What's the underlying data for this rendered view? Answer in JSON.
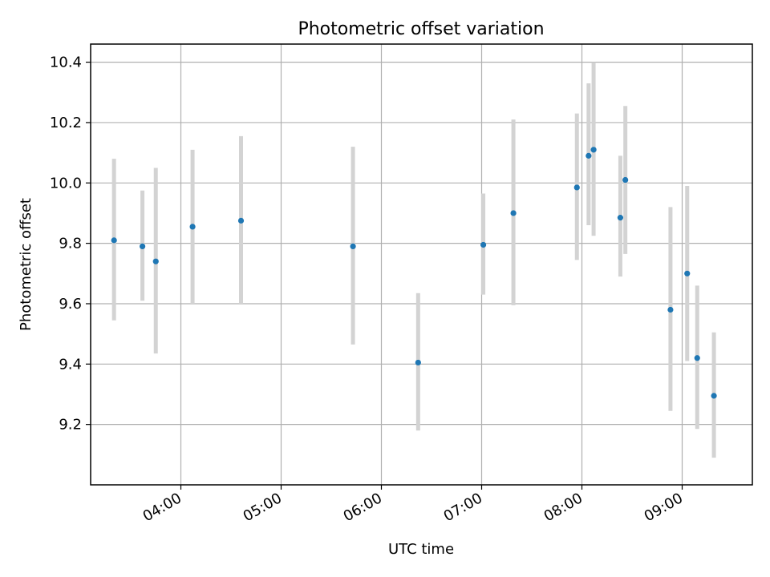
{
  "chart_data": {
    "type": "scatter",
    "title": "Photometric offset variation",
    "xlabel": "UTC time",
    "ylabel": "Photometric offset",
    "x_axis": {
      "kind": "time",
      "ticks": [
        "04:00",
        "05:00",
        "06:00",
        "07:00",
        "08:00",
        "09:00"
      ],
      "range": [
        "03:06",
        "09:42"
      ]
    },
    "ylim": [
      9.0,
      10.46
    ],
    "y_ticks": [
      "9.2",
      "9.4",
      "9.6",
      "9.8",
      "10.0",
      "10.2",
      "10.4"
    ],
    "grid": true,
    "marker_color": "#1f77b4",
    "errorbar_color": "#d3d3d3",
    "series": [
      {
        "points": [
          {
            "x": "03:20",
            "y": 9.81,
            "ylow": 9.545,
            "yhigh": 10.08
          },
          {
            "x": "03:37",
            "y": 9.79,
            "ylow": 9.61,
            "yhigh": 9.975
          },
          {
            "x": "03:45",
            "y": 9.74,
            "ylow": 9.435,
            "yhigh": 10.05
          },
          {
            "x": "04:07",
            "y": 9.855,
            "ylow": 9.6,
            "yhigh": 10.11
          },
          {
            "x": "04:36",
            "y": 9.875,
            "ylow": 9.6,
            "yhigh": 10.155
          },
          {
            "x": "05:43",
            "y": 9.79,
            "ylow": 9.465,
            "yhigh": 10.12
          },
          {
            "x": "06:22",
            "y": 9.405,
            "ylow": 9.18,
            "yhigh": 9.635
          },
          {
            "x": "07:01",
            "y": 9.795,
            "ylow": 9.63,
            "yhigh": 9.965
          },
          {
            "x": "07:19",
            "y": 9.9,
            "ylow": 9.595,
            "yhigh": 10.21
          },
          {
            "x": "07:57",
            "y": 9.985,
            "ylow": 9.745,
            "yhigh": 10.23
          },
          {
            "x": "08:04",
            "y": 10.09,
            "ylow": 9.86,
            "yhigh": 10.33
          },
          {
            "x": "08:07",
            "y": 10.11,
            "ylow": 9.825,
            "yhigh": 10.4
          },
          {
            "x": "08:23",
            "y": 9.885,
            "ylow": 9.69,
            "yhigh": 10.09
          },
          {
            "x": "08:26",
            "y": 10.01,
            "ylow": 9.765,
            "yhigh": 10.255
          },
          {
            "x": "08:53",
            "y": 9.58,
            "ylow": 9.245,
            "yhigh": 9.92
          },
          {
            "x": "09:03",
            "y": 9.7,
            "ylow": 9.41,
            "yhigh": 9.99
          },
          {
            "x": "09:09",
            "y": 9.42,
            "ylow": 9.185,
            "yhigh": 9.66
          },
          {
            "x": "09:19",
            "y": 9.295,
            "ylow": 9.09,
            "yhigh": 9.505
          }
        ]
      }
    ]
  }
}
